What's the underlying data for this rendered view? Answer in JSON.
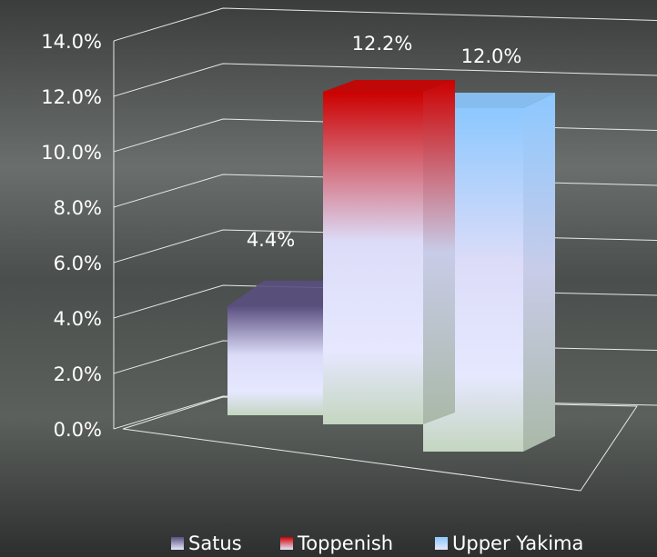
{
  "chart_data": {
    "type": "bar",
    "series": [
      {
        "name": "Satus",
        "color": "#5a4f80",
        "values": [
          4.4
        ],
        "value_labels": [
          "4.4%"
        ]
      },
      {
        "name": "Toppenish",
        "color": "#cc0000",
        "values": [
          12.2
        ],
        "value_labels": [
          "12.2%"
        ]
      },
      {
        "name": "Upper Yakima",
        "color": "#8cc8ff",
        "values": [
          12.0
        ],
        "value_labels": [
          "12.0%"
        ]
      }
    ],
    "ylim": [
      0,
      14
    ],
    "yticks": [
      {
        "value": 0,
        "label": "0.0%"
      },
      {
        "value": 2,
        "label": "2.0%"
      },
      {
        "value": 4,
        "label": "4.0%"
      },
      {
        "value": 6,
        "label": "6.0%"
      },
      {
        "value": 8,
        "label": "8.0%"
      },
      {
        "value": 10,
        "label": "10.0%"
      },
      {
        "value": 12,
        "label": "12.0%"
      },
      {
        "value": 14,
        "label": "14.0%"
      }
    ],
    "grid": true
  }
}
